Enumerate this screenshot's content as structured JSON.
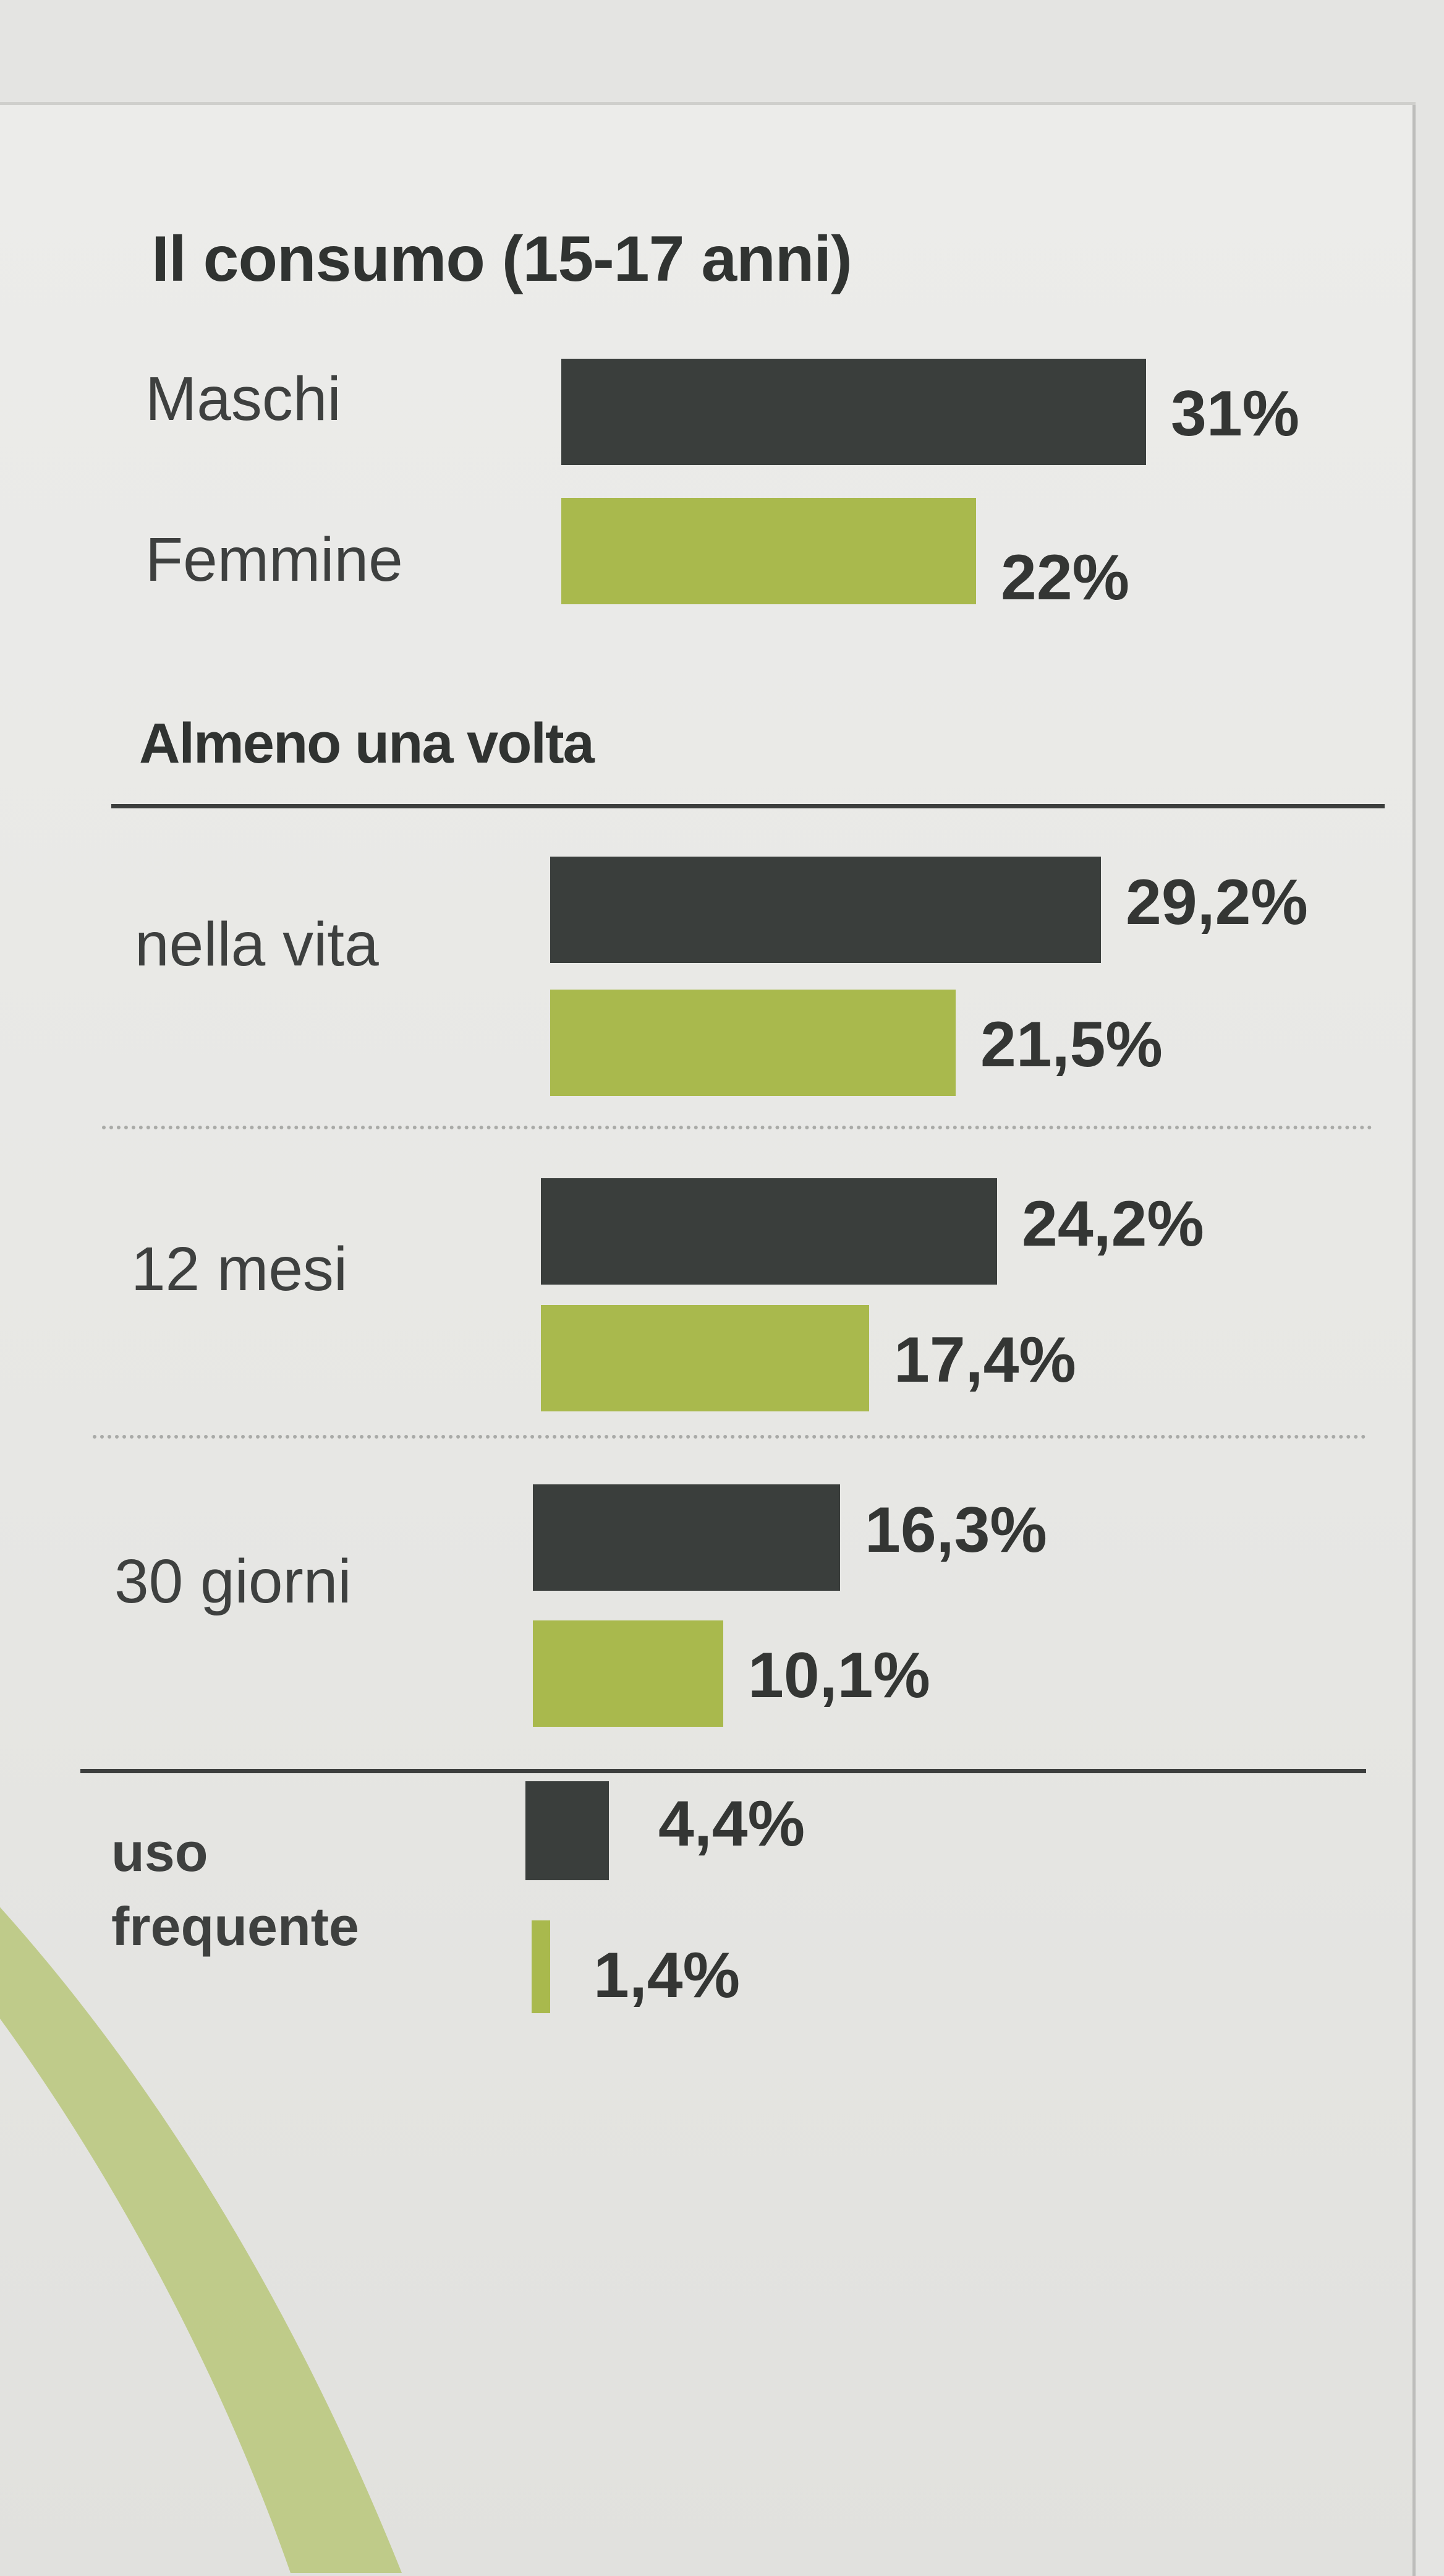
{
  "colors": {
    "maschi": "#3a3e3c",
    "femmine": "#a9b94d",
    "text": "#303331"
  },
  "chart_data": {
    "type": "bar",
    "orientation": "horizontal",
    "title": "Il consumo (15-17 anni)",
    "legend_groups": [
      {
        "label": "Maschi",
        "color": "#3a3e3c",
        "value": 31,
        "label_text": "31%"
      },
      {
        "label": "Femmine",
        "color": "#a9b94d",
        "value": 22,
        "label_text": "22%"
      }
    ],
    "section_title": "Almeno una volta",
    "categories": [
      "nella vita",
      "12 mesi",
      "30 giorni"
    ],
    "series": [
      {
        "name": "Maschi",
        "values": [
          29.2,
          24.2,
          16.3
        ],
        "labels": [
          "29,2%",
          "24,2%",
          "16,3%"
        ]
      },
      {
        "name": "Femmine",
        "values": [
          21.5,
          17.4,
          10.1
        ],
        "labels": [
          "21,5%",
          "17,4%",
          "10,1%"
        ]
      }
    ],
    "extra": {
      "label_line1": "uso",
      "label_line2": "frequente",
      "values": [
        4.4,
        1.4
      ],
      "labels": [
        "4,4%",
        "1,4%"
      ]
    }
  }
}
